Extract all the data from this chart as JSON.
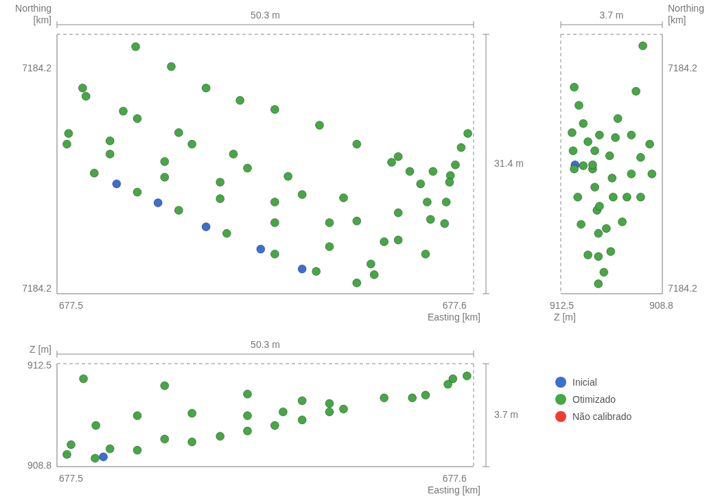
{
  "chart_data": [
    {
      "type": "scatter",
      "xlabel": "Easting [km]",
      "ylabel": "Northing [km]",
      "marker": "circle",
      "xlim": [
        677.52,
        677.5703
      ],
      "xticks": [
        {
          "value": 677.5217,
          "label": "677.5"
        },
        {
          "value": 677.568,
          "label": "677.6"
        }
      ],
      "ylim": [
        7184.19,
        7184.2214
      ],
      "yticks": [
        {
          "value": 7184.1907,
          "label": "7184.2"
        },
        {
          "value": 7184.2173,
          "label": "7184.2"
        }
      ],
      "annotations": [
        "50.3 m",
        "31.4 m"
      ],
      "series": [
        {
          "color": "#3b6fd0",
          "x": [
            677.5496,
            677.5446,
            677.538,
            677.5322,
            677.5272
          ],
          "values": [
            7184.193,
            7184.1954,
            7184.1981,
            7184.201,
            7184.2033
          ]
        },
        {
          "color": "#45a845",
          "x": [
            677.5295,
            677.5338,
            677.538,
            677.5421,
            677.5463,
            677.5517,
            677.5562,
            677.5612,
            677.5654,
            677.5675,
            677.5604,
            677.5626,
            677.5639,
            677.5647,
            677.5651,
            677.5696,
            677.5688,
            677.5681,
            677.5674,
            677.567,
            677.5668,
            677.5231,
            677.528,
            677.5347,
            677.5413,
            677.5479,
            677.5546,
            677.5612,
            677.5235,
            677.5297,
            677.5363,
            677.543,
            677.5496,
            677.5562,
            677.5612,
            677.5645,
            677.5595,
            677.5529,
            677.5463,
            677.5397,
            677.533,
            677.5264,
            677.5214,
            677.5212,
            677.5264,
            677.533,
            677.5397,
            677.5463,
            677.5529,
            677.5579,
            677.5583,
            677.5562,
            677.5513,
            677.5463,
            677.5405,
            677.5347,
            677.5297,
            677.5245
          ],
          "values": [
            7184.2199,
            7184.2175,
            7184.2149,
            7184.2134,
            7184.2123,
            7184.2104,
            7184.2081,
            7184.2066,
            7184.2048,
            7184.2043,
            7184.2059,
            7184.2048,
            7184.2033,
            7184.2011,
            7184.199,
            7184.2094,
            7184.2077,
            7184.2056,
            7184.2035,
            7184.2011,
            7184.1985,
            7184.2149,
            7184.2121,
            7184.2095,
            7184.2069,
            7184.2042,
            7184.2016,
            7184.1998,
            7184.2139,
            7184.2112,
            7184.2081,
            7184.2052,
            7184.202,
            7184.1988,
            7184.1965,
            7184.1948,
            7184.1963,
            7184.1986,
            7184.2011,
            7184.2035,
            7184.206,
            7184.2085,
            7184.2094,
            7184.2081,
            7184.2069,
            7184.2041,
            7184.2015,
            7184.1986,
            7184.1957,
            7184.1936,
            7184.1923,
            7184.1913,
            7184.1927,
            7184.1948,
            7184.1973,
            7184.2001,
            7184.2023,
            7184.2046
          ]
        }
      ]
    },
    {
      "type": "scatter",
      "xlabel": "Z [m]",
      "ylabel": "Northing [km]",
      "marker": "circle",
      "xlim": [
        912.5,
        908.8
      ],
      "xticks": [
        {
          "value": 912.46,
          "label": "912.5"
        },
        {
          "value": 908.84,
          "label": "908.8"
        }
      ],
      "ylim": [
        7184.19,
        7184.2214
      ],
      "yticks": [
        {
          "value": 7184.1907,
          "label": "7184.2"
        },
        {
          "value": 7184.2173,
          "label": "7184.2"
        }
      ],
      "annotations": [
        "3.7 m"
      ],
      "series": [
        {
          "color": "#3b6fd0",
          "x": [
            911.98
          ],
          "values": [
            7184.2056
          ]
        },
        {
          "color": "#45a845",
          "x": [
            909.51,
            909.76,
            910.42,
            911.09,
            911.26,
            911.34,
            912.01,
            911.84,
            911.68,
            911.51,
            911.34,
            911.26,
            911.18,
            911.13,
            911.13,
            911.13,
            912.09,
            912.05,
            912.01,
            911.88,
            911.76,
            911.68,
            909.26,
            909.93,
            910.51,
            910.72,
            910.63,
            910.59,
            911.09,
            909.59,
            909.93,
            910.09,
            910.26,
            910.84,
            909.18,
            909.59,
            910.68,
            910.93,
            911.51
          ],
          "values": [
            7184.22,
            7184.2145,
            7184.2112,
            7184.2092,
            7184.2073,
            7184.2051,
            7184.215,
            7184.2128,
            7184.2106,
            7184.2084,
            7184.2056,
            7184.2029,
            7184.2001,
            7184.1973,
            7184.1945,
            7184.1912,
            7184.2095,
            7184.2073,
            7184.2051,
            7184.2017,
            7184.1984,
            7184.2055,
            7184.2081,
            7184.2092,
            7184.2089,
            7184.2067,
            7184.204,
            7184.2017,
            7184.2006,
            7184.2065,
            7184.2045,
            7184.2017,
            7184.1987,
            7184.1979,
            7184.2045,
            7184.2017,
            7184.1951,
            7184.1926,
            7184.1947
          ]
        }
      ]
    },
    {
      "type": "scatter",
      "xlabel": "Easting [km]",
      "ylabel": "Z [m]",
      "marker": "circle",
      "legend": "right",
      "xlim": [
        677.52,
        677.5703
      ],
      "xticks": [
        {
          "value": 677.5217,
          "label": "677.5"
        },
        {
          "value": 677.568,
          "label": "677.6"
        }
      ],
      "ylim": [
        908.8,
        912.5
      ],
      "yticks": [
        {
          "value": 908.84,
          "label": "908.8"
        },
        {
          "value": 912.46,
          "label": "912.5"
        }
      ],
      "annotations": [
        "50.3 m",
        "3.7 m"
      ],
      "series": [
        {
          "name": "Inicial",
          "color": "#3b6fd0",
          "x": [
            677.5256
          ],
          "values": [
            909.15
          ]
        },
        {
          "name": "Otimizado",
          "color": "#45a845",
          "x": [
            677.5232,
            677.533,
            677.543,
            677.5496,
            677.5595,
            677.5645,
            677.5678,
            677.5695,
            677.5529,
            677.5473,
            677.543,
            677.5363,
            677.5297,
            677.5247,
            677.5217,
            677.5212,
            677.5264,
            677.533,
            677.5397,
            677.5463,
            677.5529,
            677.5629,
            677.5246,
            677.5297,
            677.5363,
            677.543,
            677.5496,
            677.5546,
            677.5672
          ],
          "values": [
            911.96,
            911.71,
            911.41,
            911.17,
            911.27,
            911.37,
            911.96,
            912.06,
            911.07,
            910.77,
            910.63,
            910.72,
            910.63,
            910.28,
            909.59,
            909.24,
            909.44,
            909.79,
            909.89,
            910.28,
            910.77,
            911.27,
            909.1,
            909.39,
            909.69,
            910.08,
            910.48,
            910.87,
            911.76
          ]
        },
        {
          "name": "Não calibrado",
          "color": "#f03c32"
        }
      ]
    }
  ]
}
